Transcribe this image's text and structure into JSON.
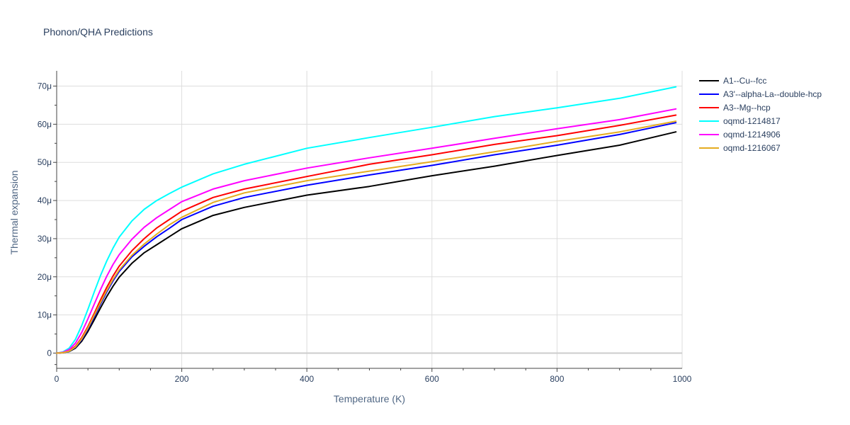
{
  "chart_data": {
    "type": "line",
    "title": "Phonon/QHA Predictions",
    "xlabel": "Temperature (K)",
    "ylabel": "Thermal expansion",
    "xlim": [
      0,
      1000
    ],
    "ylim": [
      -4e-06,
      7.4e-05
    ],
    "x_ticks": [
      0,
      200,
      400,
      600,
      800,
      1000
    ],
    "x_tick_labels": [
      "0",
      "200",
      "400",
      "600",
      "800",
      "1000"
    ],
    "y_ticks": [
      0,
      1e-05,
      2e-05,
      3e-05,
      4e-05,
      5e-05,
      6e-05,
      7e-05
    ],
    "y_tick_labels": [
      "0",
      "10μ",
      "20μ",
      "30μ",
      "40μ",
      "50μ",
      "60μ",
      "70μ"
    ],
    "grid": true,
    "legend_position": "top-right outside",
    "x": [
      0,
      10,
      20,
      30,
      40,
      50,
      60,
      70,
      80,
      90,
      100,
      120,
      140,
      160,
      180,
      200,
      250,
      300,
      400,
      500,
      600,
      700,
      800,
      900,
      990
    ],
    "series": [
      {
        "name": "A1--Cu--fcc",
        "color": "#000000",
        "values": [
          0,
          1e-07,
          4e-07,
          1.3e-06,
          3.1e-06,
          5.7e-06,
          8.7e-06,
          1.18e-05,
          1.48e-05,
          1.75e-05,
          1.99e-05,
          2.35e-05,
          2.63e-05,
          2.84e-05,
          3.05e-05,
          3.26e-05,
          3.61e-05,
          3.82e-05,
          4.14e-05,
          4.37e-05,
          4.65e-05,
          4.9e-05,
          5.18e-05,
          5.45e-05,
          5.8e-05
        ]
      },
      {
        "name": "A3'--alpha-La--double-hcp",
        "color": "#0000ff",
        "values": [
          0,
          1e-07,
          5e-07,
          1.5e-06,
          3.5e-06,
          6.3e-06,
          9.5e-06,
          1.28e-05,
          1.6e-05,
          1.89e-05,
          2.14e-05,
          2.52e-05,
          2.8e-05,
          3.05e-05,
          3.27e-05,
          3.5e-05,
          3.85e-05,
          4.08e-05,
          4.4e-05,
          4.67e-05,
          4.92e-05,
          5.2e-05,
          5.45e-05,
          5.73e-05,
          6.04e-05
        ]
      },
      {
        "name": "A3--Mg--hcp",
        "color": "#ff0000",
        "values": [
          0,
          1e-07,
          6e-07,
          1.8e-06,
          4e-06,
          7e-06,
          1.04e-05,
          1.39e-05,
          1.72e-05,
          2.02e-05,
          2.28e-05,
          2.68e-05,
          3e-05,
          3.28e-05,
          3.5e-05,
          3.72e-05,
          4.08e-05,
          4.3e-05,
          4.63e-05,
          4.95e-05,
          5.2e-05,
          5.47e-05,
          5.7e-05,
          5.97e-05,
          6.24e-05
        ]
      },
      {
        "name": "oqmd-1214817",
        "color": "#00ffff",
        "values": [
          0,
          3e-07,
          1.3e-06,
          3.6e-06,
          7.2e-06,
          1.15e-05,
          1.6e-05,
          2.03e-05,
          2.41e-05,
          2.75e-05,
          3.04e-05,
          3.46e-05,
          3.77e-05,
          4e-05,
          4.18e-05,
          4.35e-05,
          4.7e-05,
          4.95e-05,
          5.37e-05,
          5.65e-05,
          5.92e-05,
          6.2e-05,
          6.43e-05,
          6.68e-05,
          6.98e-05
        ]
      },
      {
        "name": "oqmd-1214906",
        "color": "#ff00ff",
        "values": [
          0,
          2e-07,
          9e-07,
          2.6e-06,
          5.4e-06,
          9e-06,
          1.28e-05,
          1.66e-05,
          2.01e-05,
          2.32e-05,
          2.58e-05,
          2.98e-05,
          3.3e-05,
          3.55e-05,
          3.76e-05,
          3.97e-05,
          4.3e-05,
          4.52e-05,
          4.85e-05,
          5.12e-05,
          5.37e-05,
          5.63e-05,
          5.88e-05,
          6.12e-05,
          6.4e-05
        ]
      },
      {
        "name": "oqmd-1216067",
        "color": "#e5ac20",
        "values": [
          0,
          1e-07,
          5e-07,
          1.6e-06,
          3.7e-06,
          6.6e-06,
          9.9e-06,
          1.32e-05,
          1.64e-05,
          1.93e-05,
          2.18e-05,
          2.56e-05,
          2.86e-05,
          3.12e-05,
          3.36e-05,
          3.56e-05,
          3.95e-05,
          4.2e-05,
          4.52e-05,
          4.77e-05,
          5.02e-05,
          5.28e-05,
          5.55e-05,
          5.8e-05,
          6.08e-05
        ]
      }
    ]
  }
}
